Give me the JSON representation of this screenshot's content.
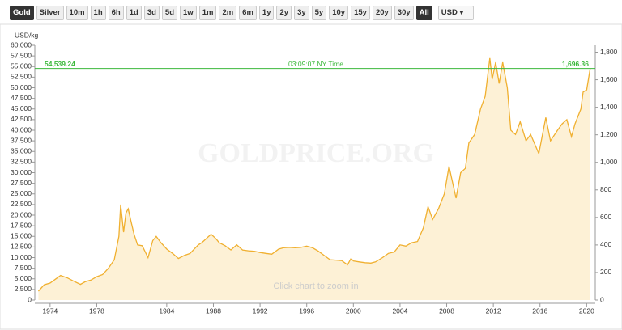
{
  "toolbar": {
    "metals": [
      "Gold",
      "Silver"
    ],
    "active_metal": "Gold",
    "ranges": [
      "10m",
      "1h",
      "6h",
      "1d",
      "3d",
      "5d",
      "1w",
      "1m",
      "2m",
      "6m",
      "1y",
      "2y",
      "3y",
      "5y",
      "10y",
      "15y",
      "20y",
      "30y",
      "All"
    ],
    "active_range": "All",
    "currency": "USD ▾"
  },
  "chart_data": {
    "type": "area",
    "y_label": "USD/kg",
    "watermark": "GOLDPRICE.ORG",
    "annotation": "Click chart to zoom in",
    "color": "#f0b030",
    "fill_color": "#fdf1d6",
    "x": [
      1973.0,
      1973.5,
      1974.0,
      1974.5,
      1974.9,
      1975.5,
      1976.0,
      1976.6,
      1977.0,
      1977.5,
      1978.0,
      1978.5,
      1979.0,
      1979.5,
      1979.9,
      1980.05,
      1980.3,
      1980.5,
      1980.7,
      1980.9,
      1981.2,
      1981.5,
      1981.9,
      1982.4,
      1982.8,
      1983.1,
      1983.5,
      1984.0,
      1984.5,
      1985.0,
      1985.5,
      1986.0,
      1986.7,
      1987.0,
      1987.8,
      1988.2,
      1988.5,
      1989.0,
      1989.5,
      1990.0,
      1990.5,
      1991.0,
      1991.5,
      1992.0,
      1992.5,
      1993.0,
      1993.6,
      1994.0,
      1994.5,
      1995.0,
      1995.5,
      1996.0,
      1996.5,
      1997.0,
      1997.5,
      1998.0,
      1998.5,
      1999.0,
      1999.5,
      1999.8,
      2000.0,
      2000.5,
      2001.0,
      2001.5,
      2001.9,
      2002.5,
      2003.0,
      2003.5,
      2004.0,
      2004.5,
      2005.0,
      2005.5,
      2006.0,
      2006.4,
      2006.8,
      2007.3,
      2007.8,
      2008.2,
      2008.8,
      2009.2,
      2009.6,
      2009.9,
      2010.4,
      2010.9,
      2011.3,
      2011.7,
      2011.9,
      2012.2,
      2012.5,
      2012.8,
      2013.2,
      2013.5,
      2013.9,
      2014.3,
      2014.8,
      2015.2,
      2015.9,
      2016.5,
      2016.9,
      2017.5,
      2017.9,
      2018.3,
      2018.7,
      2019.0,
      2019.5,
      2019.7,
      2020.0,
      2020.3
    ],
    "values": [
      2100,
      3600,
      4000,
      5000,
      5800,
      5200,
      4500,
      3700,
      4300,
      4700,
      5500,
      6000,
      7500,
      9500,
      15000,
      22500,
      16000,
      20500,
      21500,
      19000,
      15500,
      13000,
      12800,
      10000,
      14000,
      15000,
      13500,
      12000,
      11000,
      9800,
      10500,
      11000,
      13000,
      13500,
      15500,
      14500,
      13500,
      12800,
      11800,
      13000,
      11800,
      11600,
      11500,
      11200,
      11000,
      10800,
      12000,
      12300,
      12400,
      12300,
      12400,
      12700,
      12300,
      11500,
      10500,
      9500,
      9400,
      9300,
      8300,
      9800,
      9200,
      9000,
      8800,
      8700,
      9000,
      10000,
      11000,
      11300,
      13000,
      12700,
      13500,
      13800,
      17000,
      22000,
      19000,
      21500,
      25000,
      31500,
      24000,
      30000,
      31000,
      37000,
      39000,
      45000,
      48000,
      57000,
      52000,
      56000,
      51000,
      56000,
      50000,
      40000,
      39000,
      42000,
      37500,
      39000,
      34500,
      43000,
      37500,
      40000,
      41500,
      42500,
      38500,
      41500,
      45000,
      49000,
      49500,
      54539.24
    ],
    "xlim": [
      1972.9,
      2020.6
    ],
    "xticks": [
      1974,
      1978,
      1984,
      1988,
      1992,
      1996,
      2000,
      2004,
      2008,
      2012,
      2016,
      2020
    ],
    "ylim": [
      0,
      60000
    ],
    "yticks": [
      0,
      {
        "value": 2500,
        "label": "2,500"
      },
      {
        "value": 5000,
        "label": "5,000"
      },
      {
        "value": 7500,
        "label": "7,500"
      },
      {
        "value": 10000,
        "label": "10,000"
      },
      {
        "value": 12500,
        "label": "12,500"
      },
      {
        "value": 15000,
        "label": "15,000"
      },
      {
        "value": 17500,
        "label": "17,500"
      },
      {
        "value": 20000,
        "label": "20,000"
      },
      {
        "value": 22500,
        "label": "22,500"
      },
      {
        "value": 25000,
        "label": "25,000"
      },
      {
        "value": 27500,
        "label": "27,500"
      },
      {
        "value": 30000,
        "label": "30,000"
      },
      {
        "value": 32500,
        "label": "32,500"
      },
      {
        "value": 35000,
        "label": "35,000"
      },
      {
        "value": 37500,
        "label": "37,500"
      },
      {
        "value": 40000,
        "label": "40,000"
      },
      {
        "value": 42500,
        "label": "42,500"
      },
      {
        "value": 45000,
        "label": "45,000"
      },
      {
        "value": 47500,
        "label": "47,500"
      },
      {
        "value": 50000,
        "label": "50,000"
      },
      {
        "value": 52500,
        "label": "52,500"
      },
      {
        "value": 55000,
        "label": "55,000"
      },
      {
        "value": 57500,
        "label": "57,500"
      },
      {
        "value": 60000,
        "label": "60,000"
      }
    ],
    "y2lim": [
      0,
      1850
    ],
    "y2ticks": [
      0,
      200,
      400,
      600,
      800,
      {
        "value": 1000,
        "label": "1,000"
      },
      {
        "value": 1200,
        "label": "1,200"
      },
      {
        "value": 1400,
        "label": "1,400"
      },
      {
        "value": 1600,
        "label": "1,600"
      },
      {
        "value": 1800,
        "label": "1,800"
      }
    ],
    "current": {
      "price_kg": {
        "value": 54539.24,
        "label": "54,539.24"
      },
      "time": "03:09:07 NY Time",
      "price_oz": {
        "value": 1696.36,
        "label": "1,696.36"
      },
      "color": "#3cb83c"
    }
  }
}
